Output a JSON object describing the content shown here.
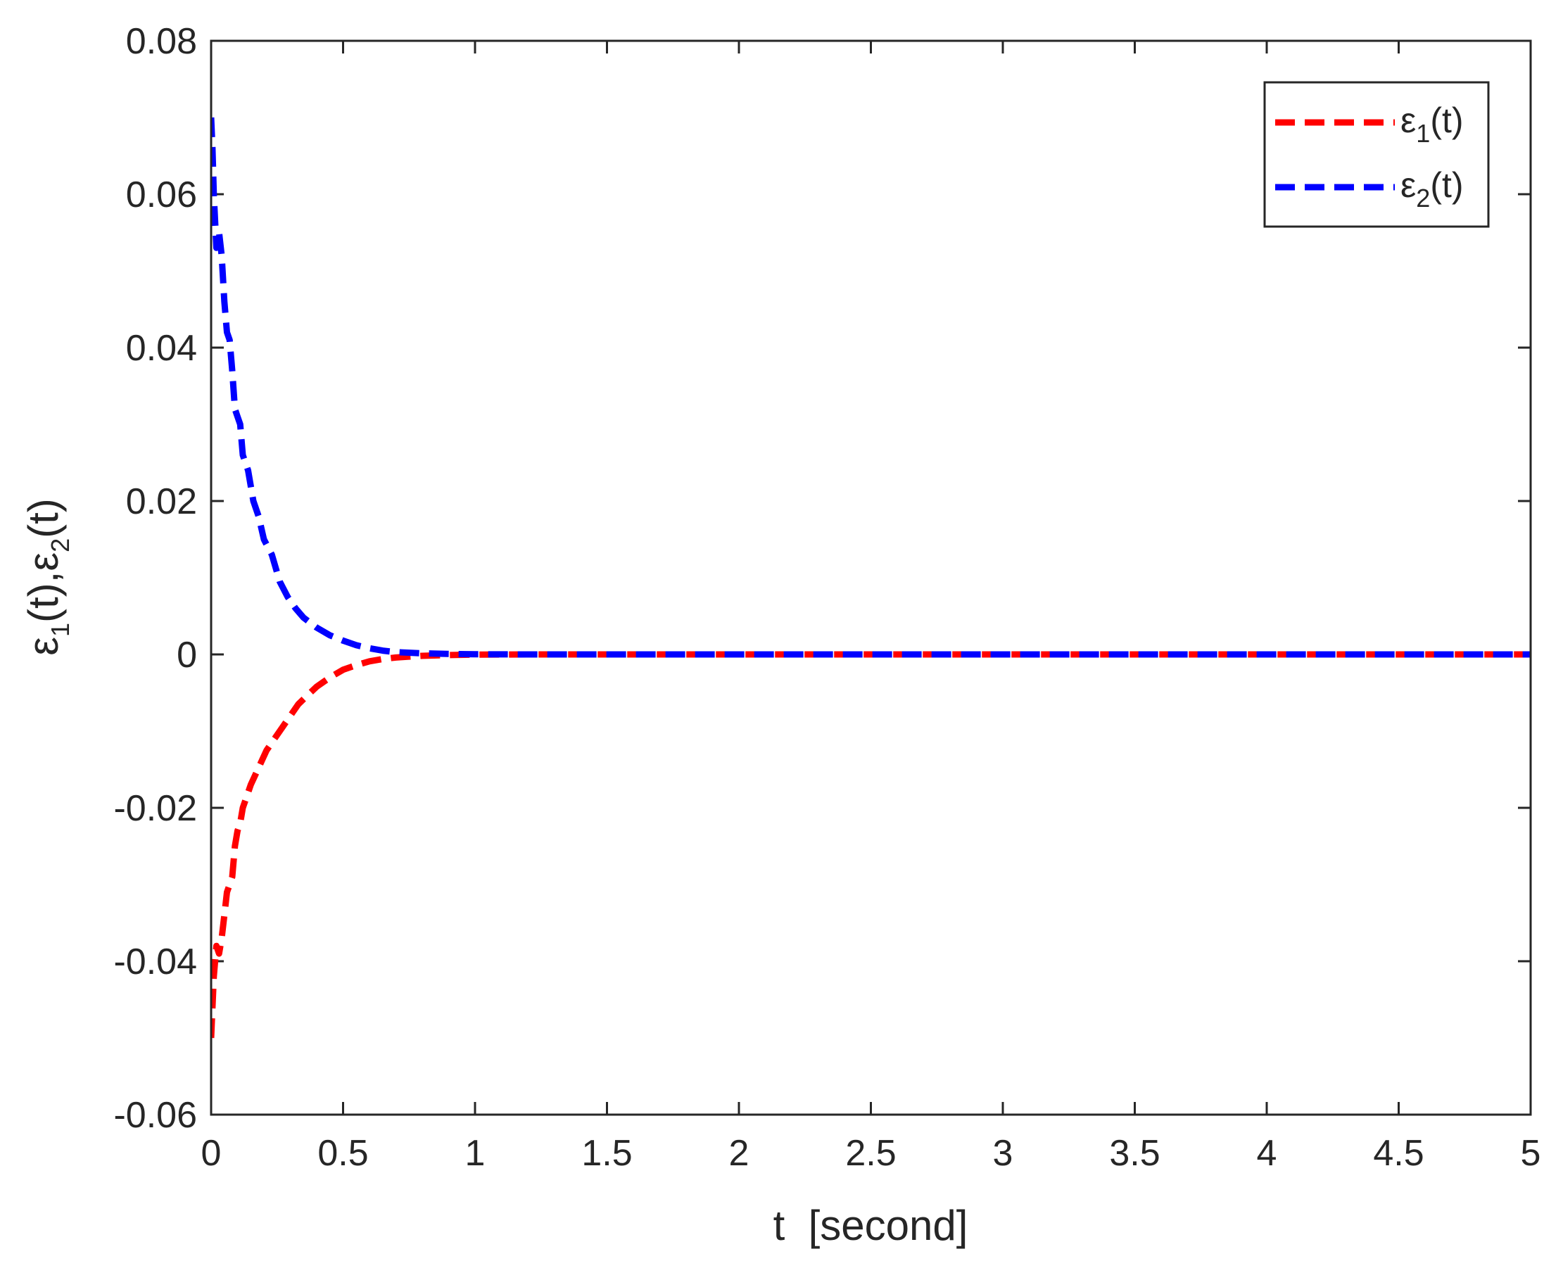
{
  "chart_data": {
    "type": "line",
    "title": "",
    "xlabel": "t  [second]",
    "ylabel": {
      "sym1": "ε",
      "sub1": "1",
      "mid": "(t),",
      "sym2": "ε",
      "sub2": "2",
      "end": "(t)"
    },
    "xlim": [
      0,
      5
    ],
    "ylim": [
      -0.06,
      0.08
    ],
    "xticks": [
      0,
      0.5,
      1,
      1.5,
      2,
      2.5,
      3,
      3.5,
      4,
      4.5,
      5
    ],
    "xtick_labels": [
      "0",
      "0.5",
      "1",
      "1.5",
      "2",
      "2.5",
      "3",
      "3.5",
      "4",
      "4.5",
      "5"
    ],
    "yticks": [
      -0.06,
      -0.04,
      -0.02,
      0,
      0.02,
      0.04,
      0.06,
      0.08
    ],
    "ytick_labels": [
      "-0.06",
      "-0.04",
      "-0.02",
      "0",
      "0.02",
      "0.04",
      "0.06",
      "0.08"
    ],
    "grid": false,
    "legend_position": "top-right",
    "series": [
      {
        "name": "ε1(t)",
        "legend": {
          "sym": "ε",
          "sub": "1",
          "end": "(t)"
        },
        "color": "#ff0000",
        "style": "dashed",
        "x": [
          0,
          0.005,
          0.01,
          0.02,
          0.03,
          0.04,
          0.05,
          0.06,
          0.07,
          0.08,
          0.09,
          0.1,
          0.11,
          0.12,
          0.13,
          0.15,
          0.17,
          0.19,
          0.21,
          0.24,
          0.27,
          0.3,
          0.33,
          0.36,
          0.4,
          0.45,
          0.5,
          0.55,
          0.6,
          0.65,
          0.7,
          0.8,
          0.9,
          1.0,
          1.2,
          1.5,
          2.0,
          2.5,
          3.0,
          3.5,
          4.0,
          4.5,
          5.0
        ],
        "y": [
          -0.05,
          -0.046,
          -0.042,
          -0.038,
          -0.039,
          -0.037,
          -0.034,
          -0.031,
          -0.03,
          -0.029,
          -0.025,
          -0.023,
          -0.022,
          -0.02,
          -0.019,
          -0.017,
          -0.0155,
          -0.014,
          -0.0125,
          -0.011,
          -0.0095,
          -0.008,
          -0.0065,
          -0.0055,
          -0.0042,
          -0.003,
          -0.002,
          -0.0014,
          -0.0009,
          -0.0006,
          -0.0004,
          -0.00018,
          -8e-05,
          -3e-05,
          0,
          0,
          0,
          0,
          0,
          0,
          0,
          0,
          0
        ]
      },
      {
        "name": "ε2(t)",
        "legend": {
          "sym": "ε",
          "sub": "2",
          "end": "(t)"
        },
        "color": "#0000ff",
        "style": "dashed",
        "x": [
          0,
          0.005,
          0.01,
          0.02,
          0.03,
          0.04,
          0.05,
          0.06,
          0.07,
          0.08,
          0.09,
          0.1,
          0.11,
          0.12,
          0.14,
          0.16,
          0.18,
          0.2,
          0.23,
          0.26,
          0.29,
          0.32,
          0.35,
          0.4,
          0.45,
          0.5,
          0.55,
          0.6,
          0.65,
          0.7,
          0.8,
          0.9,
          1.0,
          1.2,
          1.5,
          2.0,
          2.5,
          3.0,
          3.5,
          4.0,
          4.5,
          5.0
        ],
        "y": [
          0.07,
          0.066,
          0.06,
          0.053,
          0.055,
          0.052,
          0.046,
          0.042,
          0.041,
          0.037,
          0.032,
          0.031,
          0.03,
          0.026,
          0.024,
          0.02,
          0.018,
          0.015,
          0.013,
          0.0095,
          0.0075,
          0.006,
          0.0048,
          0.0035,
          0.0025,
          0.0018,
          0.0012,
          0.0008,
          0.0005,
          0.0003,
          0.00015,
          6e-05,
          2e-05,
          0,
          0,
          0,
          0,
          0,
          0,
          0,
          0,
          0
        ]
      }
    ]
  }
}
